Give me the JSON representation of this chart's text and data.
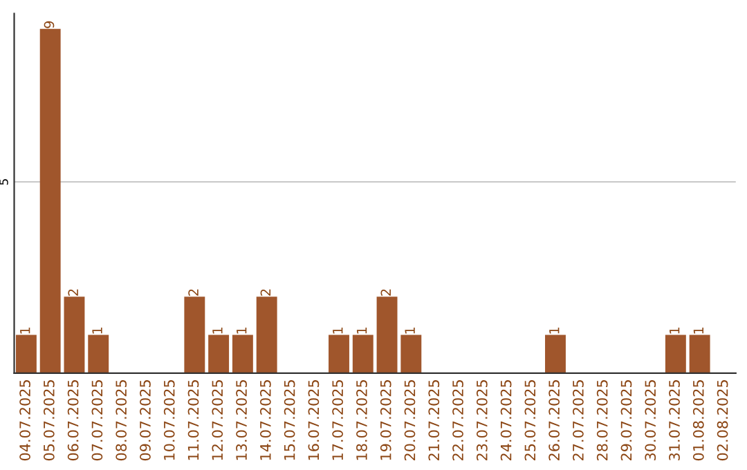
{
  "chart_data": {
    "type": "bar",
    "categories": [
      "04.07.2025",
      "05.07.2025",
      "06.07.2025",
      "07.07.2025",
      "08.07.2025",
      "09.07.2025",
      "10.07.2025",
      "11.07.2025",
      "12.07.2025",
      "13.07.2025",
      "14.07.2025",
      "15.07.2025",
      "16.07.2025",
      "17.07.2025",
      "18.07.2025",
      "19.07.2025",
      "20.07.2025",
      "21.07.2025",
      "22.07.2025",
      "23.07.2025",
      "24.07.2025",
      "25.07.2025",
      "26.07.2025",
      "27.07.2025",
      "28.07.2025",
      "29.07.2025",
      "30.07.2025",
      "31.07.2025",
      "01.08.2025",
      "02.08.2025"
    ],
    "values": [
      1,
      9,
      2,
      1,
      0,
      0,
      0,
      2,
      1,
      1,
      2,
      0,
      0,
      1,
      1,
      2,
      1,
      0,
      0,
      0,
      0,
      0,
      1,
      0,
      0,
      0,
      0,
      1,
      1,
      0
    ],
    "value_labels": [
      "1",
      "9",
      "2",
      "1",
      null,
      null,
      null,
      "2",
      "1",
      "1",
      "2",
      null,
      null,
      "1",
      "1",
      "2",
      "1",
      null,
      null,
      null,
      null,
      null,
      "1",
      null,
      null,
      null,
      null,
      "1",
      "1",
      null
    ],
    "color": "#a0562c",
    "ylim": [
      0,
      9.4
    ],
    "yticks": [
      5
    ],
    "grid": "y",
    "legend": false
  }
}
